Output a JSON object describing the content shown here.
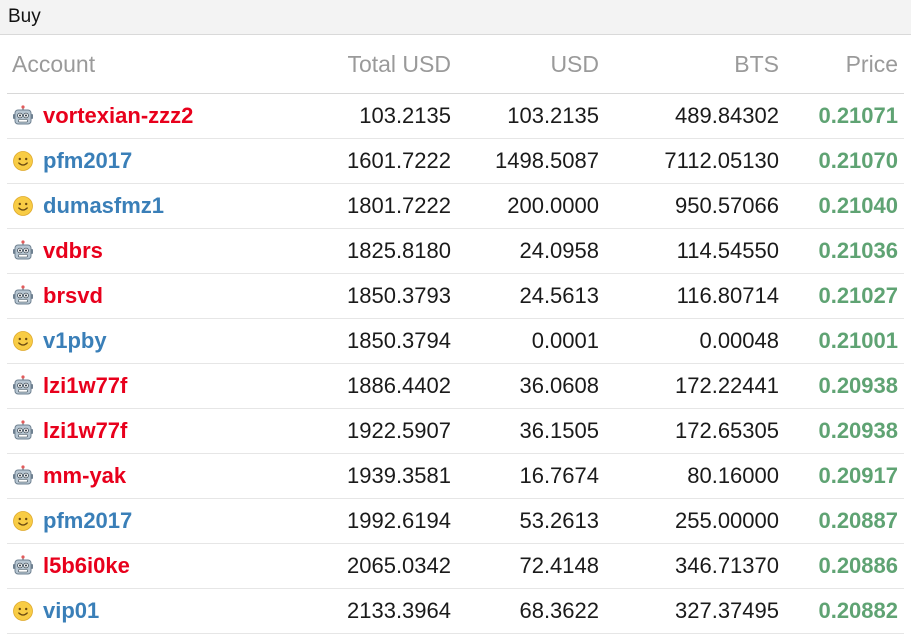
{
  "panel": {
    "title": "Buy"
  },
  "table": {
    "headers": [
      "Account",
      "Total USD",
      "USD",
      "BTS",
      "Price"
    ],
    "rows": [
      {
        "icon": "robot-icon",
        "account": "vortexian-zzz2",
        "total_usd": "103.2135",
        "usd": "103.2135",
        "bts": "489.84302",
        "price": "0.21071"
      },
      {
        "icon": "smiley-icon",
        "account": "pfm2017",
        "total_usd": "1601.7222",
        "usd": "1498.5087",
        "bts": "7112.05130",
        "price": "0.21070"
      },
      {
        "icon": "smiley-icon",
        "account": "dumasfmz1",
        "total_usd": "1801.7222",
        "usd": "200.0000",
        "bts": "950.57066",
        "price": "0.21040"
      },
      {
        "icon": "robot-icon",
        "account": "vdbrs",
        "total_usd": "1825.8180",
        "usd": "24.0958",
        "bts": "114.54550",
        "price": "0.21036"
      },
      {
        "icon": "robot-icon",
        "account": "brsvd",
        "total_usd": "1850.3793",
        "usd": "24.5613",
        "bts": "116.80714",
        "price": "0.21027"
      },
      {
        "icon": "smiley-icon",
        "account": "v1pby",
        "total_usd": "1850.3794",
        "usd": "0.0001",
        "bts": "0.00048",
        "price": "0.21001"
      },
      {
        "icon": "robot-icon",
        "account": "lzi1w77f",
        "total_usd": "1886.4402",
        "usd": "36.0608",
        "bts": "172.22441",
        "price": "0.20938"
      },
      {
        "icon": "robot-icon",
        "account": "lzi1w77f",
        "total_usd": "1922.5907",
        "usd": "36.1505",
        "bts": "172.65305",
        "price": "0.20938"
      },
      {
        "icon": "robot-icon",
        "account": "mm-yak",
        "total_usd": "1939.3581",
        "usd": "16.7674",
        "bts": "80.16000",
        "price": "0.20917"
      },
      {
        "icon": "smiley-icon",
        "account": "pfm2017",
        "total_usd": "1992.6194",
        "usd": "53.2613",
        "bts": "255.00000",
        "price": "0.20887"
      },
      {
        "icon": "robot-icon",
        "account": "l5b6i0ke",
        "total_usd": "2065.0342",
        "usd": "72.4148",
        "bts": "346.71370",
        "price": "0.20886"
      },
      {
        "icon": "smiley-icon",
        "account": "vip01",
        "total_usd": "2133.3964",
        "usd": "68.3622",
        "bts": "327.37495",
        "price": "0.20882"
      }
    ]
  },
  "colors": {
    "bot_account": "#e8001c",
    "human_account": "#3a7fb8",
    "price": "#5fa373",
    "header_text": "#9a9a9a"
  }
}
